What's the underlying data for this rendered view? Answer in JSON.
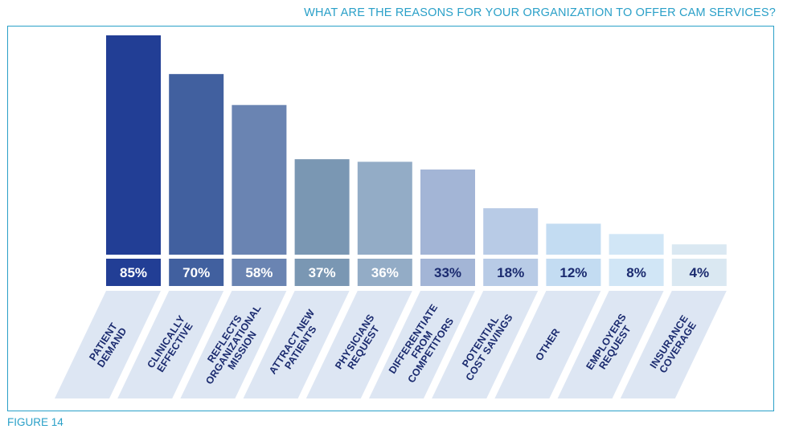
{
  "title": "WHAT ARE THE REASONS FOR YOUR ORGANIZATION TO OFFER CAM SERVICES?",
  "figure_label": "FIGURE 14",
  "chart_data": {
    "type": "bar",
    "title": "WHAT ARE THE REASONS FOR YOUR ORGANIZATION TO OFFER CAM SERVICES?",
    "categories": [
      [
        "PATIENT",
        "DEMAND"
      ],
      [
        "CLINICALLY",
        "EFFECTIVE"
      ],
      [
        "REFLECTS",
        "ORGANIZATIONAL",
        "MISSION"
      ],
      [
        "ATTRACT NEW",
        "PATIENTS"
      ],
      [
        "PHYSICIANS",
        "REQUEST"
      ],
      [
        "DIFFERENTIATE",
        "FROM",
        "COMPETITORS"
      ],
      [
        "POTENTIAL",
        "COST SAVINGS"
      ],
      [
        "OTHER"
      ],
      [
        "EMPLOYERS",
        "REQUEST"
      ],
      [
        "INSURANCE",
        "COVERAGE"
      ]
    ],
    "values": [
      85,
      70,
      58,
      37,
      36,
      33,
      18,
      12,
      8,
      4
    ],
    "value_labels": [
      "85%",
      "70%",
      "58%",
      "37%",
      "36%",
      "33%",
      "18%",
      "12%",
      "8%",
      "4%"
    ],
    "ylim": [
      0,
      85
    ],
    "grid": false,
    "legend": "none",
    "colors": {
      "bars": [
        "#223e95",
        "#41609f",
        "#6a84b2",
        "#7a97b3",
        "#93acc6",
        "#a3b5d6",
        "#b8cbe6",
        "#c3dcf2",
        "#d1e6f6",
        "#dae8f2"
      ],
      "label_text": [
        "#ffffff",
        "#ffffff",
        "#ffffff",
        "#ffffff",
        "#ffffff",
        "#1b2b6f",
        "#1b2b6f",
        "#1b2b6f",
        "#1b2b6f",
        "#1b2b6f"
      ],
      "category_bg": "#dde6f3",
      "category_text": "#1b2b6f",
      "accent": "#2aa0c8"
    }
  }
}
